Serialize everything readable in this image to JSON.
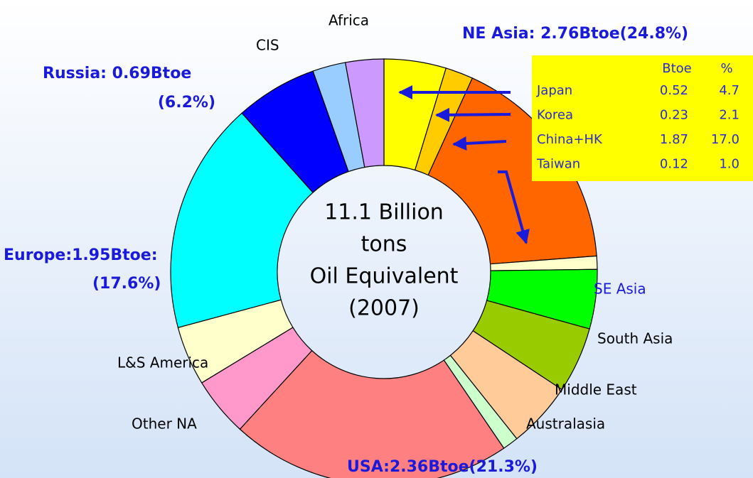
{
  "chart_data": {
    "type": "donut",
    "categories": [
      "Japan",
      "Korea",
      "China+HK",
      "Taiwan",
      "SE Asia",
      "South Asia",
      "Middle East",
      "Australasia",
      null,
      "Other NA",
      "L&S America",
      null,
      null,
      "CIS",
      "Africa"
    ],
    "values": [
      4.7,
      2.1,
      17.0,
      1.0,
      4.5,
      5.0,
      5.0,
      1.2,
      21.3,
      4.5,
      4.5,
      17.6,
      6.2,
      2.5,
      2.9
    ],
    "colors": [
      "#ffff00",
      "#ffcc00",
      "#ff6600",
      "#ffffcc",
      "#00ff00",
      "#99cc00",
      "#ffcc99",
      "#ccffcc",
      "#ff8080",
      "#ff99cc",
      "#ffffcc",
      "#00ffff",
      "#0000ff",
      "#99ccff",
      "#cc99ff"
    ],
    "center_text": [
      "11.1 Billion",
      "tons",
      "Oil Equivalent",
      "(2007)"
    ],
    "annotations": [
      {
        "lines": [
          "NE Asia: 2.76Btoe(24.8%)"
        ]
      },
      {
        "lines": [
          "Russia: 0.69Btoe",
          "(6.2%)"
        ]
      },
      {
        "lines": [
          "Europe:1.95Btoe:",
          "(17.6%)"
        ]
      },
      {
        "lines": [
          "USA:2.36Btoe(21.3%)"
        ]
      }
    ],
    "table": {
      "header": [
        "Btoe",
        "%"
      ],
      "rows": [
        [
          "Japan",
          "0.52",
          "4.7"
        ],
        [
          "Korea",
          "0.23",
          "2.1"
        ],
        [
          "China+HK",
          "1.87",
          "17.0"
        ],
        [
          "Taiwan",
          "0.12",
          "1.0"
        ]
      ]
    }
  }
}
